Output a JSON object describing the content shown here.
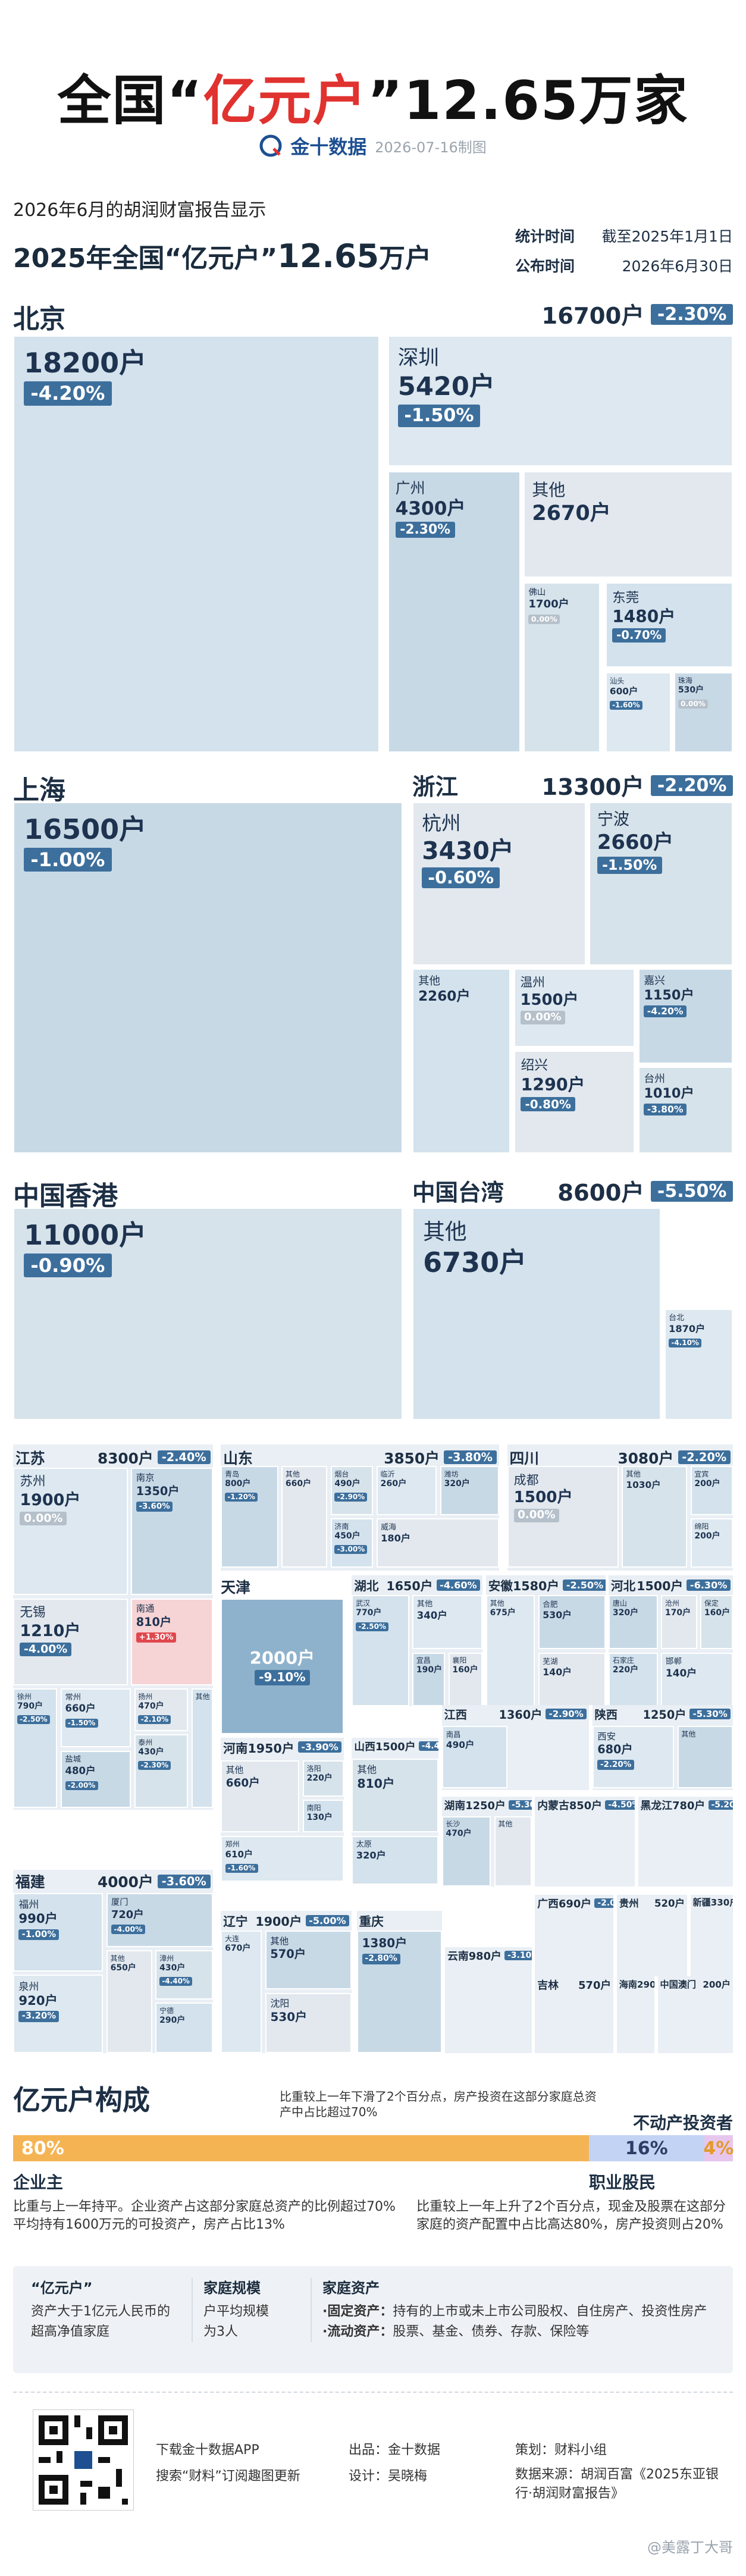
{
  "header": {
    "title_prefix": "全国“",
    "title_highlight": "亿元户",
    "title_suffix": "”12.65万家",
    "logo": "金十数据",
    "date": "2026-07-16制图"
  },
  "intro": {
    "line1": "2026年6月的胡润财富报告显示",
    "line2_prefix": "2025年全国“亿元户”",
    "line2_number": "12.65",
    "line2_unit": "万户",
    "stat_label": "统计时间",
    "stat_value": "截至2025年1月1日",
    "pub_label": "公布时间",
    "pub_value": "2026年6月30日"
  },
  "groups": [
    {
      "name": "北京",
      "cities": [
        {
          "value": "18200户",
          "change": "-4.20%"
        }
      ]
    },
    {
      "total": "16700户",
      "change": "-2.30%",
      "cities": [
        {
          "name": "深圳",
          "value": "5420户",
          "change": "-1.50%"
        },
        {
          "name": "广州",
          "value": "4300户",
          "change": "-2.30%"
        },
        {
          "name": "其他",
          "value": "2670户"
        },
        {
          "name": "佛山",
          "value": "1700户",
          "change": "0.00%"
        },
        {
          "name": "东莞",
          "value": "1480户",
          "change": "-0.70%"
        },
        {
          "name": "汕头",
          "value": "600户",
          "change": "-1.60%"
        },
        {
          "name": "珠海",
          "value": "530户",
          "change": "0.00%"
        }
      ]
    },
    {
      "name": "上海",
      "cities": [
        {
          "value": "16500户",
          "change": "-1.00%"
        }
      ]
    },
    {
      "name": "浙江",
      "total": "13300户",
      "change": "-2.20%",
      "cities": [
        {
          "name": "杭州",
          "value": "3430户",
          "change": "-0.60%"
        },
        {
          "name": "宁波",
          "value": "2660户",
          "change": "-1.50%"
        },
        {
          "name": "其他",
          "value": "2260户"
        },
        {
          "name": "温州",
          "value": "1500户",
          "change": "0.00%"
        },
        {
          "name": "嘉兴",
          "value": "1150户",
          "change": "-4.20%"
        },
        {
          "name": "绍兴",
          "value": "1290户",
          "change": "-0.80%"
        },
        {
          "name": "台州",
          "value": "1010户",
          "change": "-3.80%"
        }
      ]
    },
    {
      "name": "中国香港",
      "cities": [
        {
          "value": "11000户",
          "change": "-0.90%"
        }
      ]
    },
    {
      "name": "中国台湾",
      "total": "8600户",
      "change": "-5.50%",
      "cities": [
        {
          "name": "其他",
          "value": "6730户"
        },
        {
          "name": "台北",
          "value": "1870户",
          "change": "-4.10%"
        }
      ]
    },
    {
      "name": "江苏",
      "total": "8300户",
      "change": "-2.40%",
      "cities": [
        {
          "name": "苏州",
          "value": "1900户",
          "change": "0.00%"
        },
        {
          "name": "南京",
          "value": "1350户",
          "change": "-3.60%"
        },
        {
          "name": "无锡",
          "value": "1210户",
          "change": "-4.00%"
        },
        {
          "name": "南通",
          "value": "810户",
          "change": "+1.30%"
        },
        {
          "name": "徐州",
          "value": "790户",
          "change": "-2.50%"
        },
        {
          "name": "常州",
          "value": "660户",
          "change": "-1.50%"
        },
        {
          "name": "盐城",
          "value": "480户",
          "change": "-2.00%"
        },
        {
          "name": "扬州",
          "value": "470户",
          "change": "-2.10%"
        },
        {
          "name": "泰州",
          "value": "430户",
          "change": "-2.30%"
        },
        {
          "name": "其他"
        }
      ]
    },
    {
      "name": "山东",
      "total": "3850户",
      "change": "-3.80%",
      "cities": [
        {
          "name": "青岛",
          "value": "800户",
          "change": "-1.20%"
        },
        {
          "name": "其他",
          "value": "660户"
        },
        {
          "name": "烟台",
          "value": "490户",
          "change": "-2.90%"
        },
        {
          "name": "济南",
          "value": "450户",
          "change": "-3.00%"
        },
        {
          "name": "临沂",
          "value": "260户"
        },
        {
          "name": "潍坊",
          "value": "320户"
        },
        {
          "name": "威海",
          "value": "180户"
        }
      ]
    },
    {
      "name": "四川",
      "total": "3080户",
      "change": "-2.20%",
      "cities": [
        {
          "name": "成都",
          "value": "1500户",
          "change": "0.00%"
        },
        {
          "name": "其他",
          "value": "1030户"
        },
        {
          "name": "宜宾",
          "value": "200户"
        },
        {
          "name": "绵阳",
          "value": "200户"
        }
      ]
    },
    {
      "name": "天津",
      "cities": [
        {
          "value": "2000户",
          "change": "-9.10%"
        }
      ]
    },
    {
      "name": "湖北",
      "total": "1650户",
      "change": "-4.60%",
      "cities": [
        {
          "name": "武汉",
          "value": "770户",
          "change": "-2.50%"
        },
        {
          "name": "其他",
          "value": "340户"
        },
        {
          "name": "宜昌",
          "value": "190户"
        },
        {
          "name": "襄阳",
          "value": "160户"
        }
      ]
    },
    {
      "name": "安徽",
      "total": "1580户",
      "change": "-2.50%",
      "cities": [
        {
          "name": "其他",
          "value": "675户"
        },
        {
          "name": "合肥",
          "value": "530户"
        },
        {
          "name": "芜湖",
          "value": "140户"
        }
      ]
    },
    {
      "name": "河北",
      "total": "1500户",
      "change": "-6.30%",
      "cities": [
        {
          "name": "唐山",
          "value": "320户"
        },
        {
          "name": "沧州",
          "value": "170户"
        },
        {
          "name": "保定",
          "value": "160户"
        },
        {
          "name": "石家庄",
          "value": "220户"
        },
        {
          "name": "邯郸",
          "value": "140户"
        }
      ]
    },
    {
      "name": "河南",
      "total": "1950户",
      "change": "-3.90%",
      "cities": [
        {
          "name": "其他",
          "value": "660户"
        },
        {
          "name": "洛阳",
          "value": "220户"
        },
        {
          "name": "南阳",
          "value": "130户"
        },
        {
          "name": "郑州",
          "value": "610户",
          "change": "-1.60%"
        }
      ]
    },
    {
      "name": "山西",
      "total": "1500户",
      "change": "-4.40%",
      "cities": [
        {
          "name": "其他",
          "value": "810户"
        },
        {
          "name": "太原",
          "value": "320户"
        }
      ]
    },
    {
      "name": "江西",
      "total": "1360户",
      "change": "-2.90%",
      "cities": [
        {
          "name": "南昌",
          "value": "490户"
        }
      ]
    },
    {
      "name": "陕西",
      "total": "1250户",
      "change": "-5.30%",
      "cities": [
        {
          "name": "西安",
          "value": "680户",
          "change": "-2.20%"
        },
        {
          "name": "其他"
        }
      ]
    },
    {
      "name": "湖南",
      "total": "1250户",
      "change": "-5.30%",
      "cities": [
        {
          "name": "长沙",
          "value": "470户"
        },
        {
          "name": "其他"
        }
      ]
    },
    {
      "name": "内蒙古",
      "total": "850户",
      "change": "-4.50%"
    },
    {
      "name": "黑龙江",
      "total": "780户",
      "change": "-5.20%"
    },
    {
      "name": "福建",
      "total": "4000户",
      "change": "-3.60%",
      "cities": [
        {
          "name": "福州",
          "value": "990户",
          "change": "-1.00%"
        },
        {
          "name": "泉州",
          "value": "920户",
          "change": "-3.20%"
        },
        {
          "name": "厦门",
          "value": "720户",
          "change": "-4.00%"
        },
        {
          "name": "其他",
          "value": "650户"
        },
        {
          "name": "漳州",
          "value": "430户",
          "change": "-4.40%"
        },
        {
          "name": "宁德",
          "value": "290户"
        }
      ]
    },
    {
      "name": "辽宁",
      "total": "1900户",
      "change": "-5.00%",
      "cities": [
        {
          "name": "大连",
          "value": "670户"
        },
        {
          "name": "其他",
          "value": "570户"
        },
        {
          "name": "沈阳",
          "value": "530户"
        }
      ]
    },
    {
      "name": "重庆",
      "cities": [
        {
          "value": "1380户",
          "change": "-2.80%"
        }
      ]
    },
    {
      "name": "云南",
      "total": "980户",
      "change": "-3.10%"
    },
    {
      "name": "广西",
      "total": "690户",
      "change": "-2.00%"
    },
    {
      "name": "贵州",
      "total": "520户"
    },
    {
      "name": "新疆",
      "total": "330户"
    },
    {
      "name": "吉林",
      "total": "570户"
    },
    {
      "name": "海南",
      "total": "290户"
    },
    {
      "name": "中国澳门",
      "total": "200户"
    }
  ],
  "composition": {
    "title": "亿元户构成",
    "segments": [
      {
        "name": "企业主",
        "value": 80,
        "label": "80%",
        "color": "#f5b454",
        "note": "比重与上一年持平。企业资产占这部分家庭总资产的比例超过70% 平均持有1600万元的可投资产，房产占比13%"
      },
      {
        "name": "职业股民",
        "value": 16,
        "label": "16%",
        "color": "#c3d3f4",
        "note": "比重较上一年上升了2个百分点，现金及股票在这部分家庭的资产配置中占比高达80%，房产投资则占20%"
      },
      {
        "name": "不动产投资者",
        "value": 4,
        "label": "4%",
        "color": "#e7c6ee",
        "note": "比重较上一年下滑了2个百分点，房产投资在这部分家庭总资产中占比超过70%"
      }
    ]
  },
  "definitions": {
    "rich": {
      "title": "“亿元户”",
      "line1": "资产大于1亿元人民币的",
      "line2": "超高净值家庭"
    },
    "size": {
      "title": "家庭规模",
      "line1": "户平均规模",
      "line2": "为3人"
    },
    "assets": {
      "title": "家庭资产",
      "fixed_term": "·固定资产：",
      "fixed_text": "持有的上市或未上市公司股权、自住房产、投资性房产",
      "liquid_term": "·流动资产：",
      "liquid_text": "股票、基金、债券、存款、保险等"
    }
  },
  "footer": {
    "app": "下载金十数据APP",
    "subscribe": "搜索“财料”订阅趣图更新",
    "producer": "出品：金十数据",
    "planner": "策划：财料小组",
    "designer": "设计：吴晓梅",
    "source": "数据来源：胡润百富《2025东亚银行·胡润财富报告》",
    "watermark": "@美露丁大哥"
  }
}
